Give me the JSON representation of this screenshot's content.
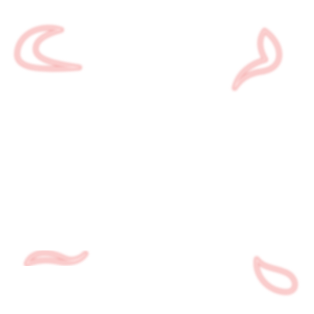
{
  "image": {
    "background_color": "#ffffff",
    "stroke_color": "#f6b6b6",
    "stroke_highlight_color": "#ffe1e1",
    "shapes": [
      {
        "name": "top-left-brush-stroke-icon"
      },
      {
        "name": "top-right-brush-stroke-icon"
      },
      {
        "name": "bottom-left-brush-stroke-icon"
      },
      {
        "name": "bottom-right-brush-stroke-icon"
      }
    ]
  }
}
